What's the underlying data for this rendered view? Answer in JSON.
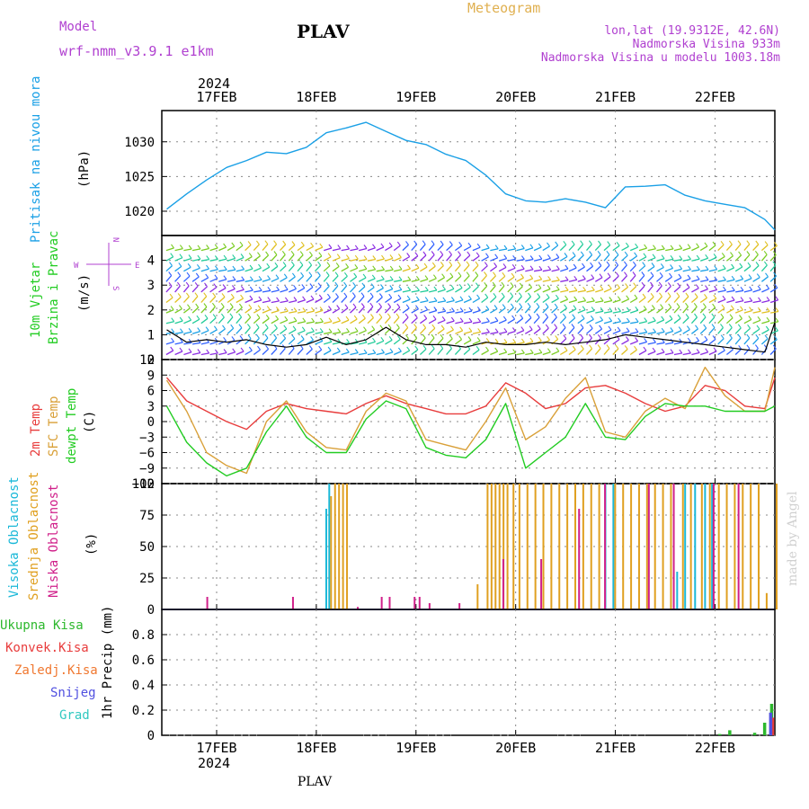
{
  "header": {
    "model_label": "Model",
    "model_value": "wrf-nmm_v3.9.1 e1km",
    "station": "PLAV",
    "product": "Meteogram",
    "coords": "lon,lat (19.9312E, 42.6N)",
    "elevation": "Nadmorska Visina 933m",
    "model_elevation": "Nadmorska Visina u modelu 1003.18m",
    "footer_station": "PLAV",
    "watermark": "made by Angel"
  },
  "colors": {
    "pressure": "#1aa0e6",
    "temp2m": "#e83c3c",
    "sfc": "#d9a038",
    "dewpt": "#22cc22",
    "high_cloud": "#1ab8d8",
    "mid_cloud": "#e0a020",
    "low_cloud": "#d0208a",
    "total_precip": "#2db82d",
    "conv_precip": "#e83c3c",
    "frz_precip": "#f07830",
    "snow": "#5050e0",
    "graupel": "#30c8c0",
    "purple_text": "#b040d0",
    "gold_text": "#e0b050"
  },
  "chart_data": [
    {
      "type": "line",
      "title": "Pritisak na nivou mora",
      "ylabel": "(hPa)",
      "ylim": [
        1016.5,
        1034.5
      ],
      "yticks": [
        "1020",
        "1025",
        "1030"
      ],
      "series": [
        {
          "name": "Pritisak na nivou mora",
          "x": [
            -0.5,
            -0.3,
            -0.1,
            0.1,
            0.3,
            0.5,
            0.7,
            0.9,
            1.1,
            1.3,
            1.5,
            1.7,
            1.9,
            2.1,
            2.3,
            2.5,
            2.7,
            2.9,
            3.1,
            3.3,
            3.5,
            3.7,
            3.9,
            4.1,
            4.3,
            4.5,
            4.7,
            4.9,
            5.1,
            5.3,
            5.5,
            5.6
          ],
          "values": [
            1020.3,
            1022.5,
            1024.5,
            1026.3,
            1027.3,
            1028.5,
            1028.3,
            1029.2,
            1031.3,
            1032.0,
            1032.8,
            1031.5,
            1030.2,
            1029.6,
            1028.2,
            1027.3,
            1025.2,
            1022.5,
            1021.5,
            1021.3,
            1021.8,
            1021.3,
            1020.5,
            1023.5,
            1023.6,
            1023.8,
            1022.3,
            1021.5,
            1021.0,
            1020.5,
            1018.8,
            1017.3
          ]
        }
      ]
    },
    {
      "type": "line",
      "title": "10m Vjetar Brzina i Pravac",
      "ylabel": "(m/s)",
      "ylim": [
        0,
        5
      ],
      "yticks": [
        "0",
        "1",
        "2",
        "3",
        "4"
      ],
      "compass": {
        "north": "N",
        "west": "W",
        "east": "E",
        "south": "S"
      },
      "series": [
        {
          "name": "speed",
          "x": [
            -0.5,
            -0.3,
            -0.1,
            0.1,
            0.3,
            0.5,
            0.7,
            0.9,
            1.1,
            1.3,
            1.5,
            1.7,
            1.9,
            2.1,
            2.3,
            2.5,
            2.7,
            2.9,
            3.1,
            3.3,
            3.5,
            3.7,
            3.9,
            4.1,
            4.3,
            4.5,
            4.7,
            4.9,
            5.1,
            5.3,
            5.5,
            5.6
          ],
          "values": [
            1.2,
            0.7,
            0.8,
            0.7,
            0.8,
            0.6,
            0.5,
            0.6,
            0.9,
            0.6,
            0.8,
            1.3,
            0.8,
            0.6,
            0.6,
            0.5,
            0.7,
            0.6,
            0.6,
            0.7,
            0.6,
            0.7,
            0.8,
            1.0,
            0.9,
            0.8,
            0.7,
            0.6,
            0.5,
            0.4,
            0.3,
            1.5
          ]
        }
      ]
    },
    {
      "type": "line",
      "title": "2m Temp / SFC Temp / dewpt Temp",
      "ylabel": "(C)",
      "ylim": [
        -12,
        12
      ],
      "yticks": [
        "−12",
        "−9",
        "−6",
        "−3",
        "0",
        "3",
        "6",
        "9",
        "12"
      ],
      "series": [
        {
          "name": "2m Temp",
          "x": [
            -0.5,
            -0.3,
            -0.1,
            0.1,
            0.3,
            0.5,
            0.7,
            0.9,
            1.1,
            1.3,
            1.5,
            1.7,
            1.9,
            2.1,
            2.3,
            2.5,
            2.7,
            2.9,
            3.1,
            3.3,
            3.5,
            3.7,
            3.9,
            4.1,
            4.3,
            4.5,
            4.7,
            4.9,
            5.1,
            5.3,
            5.5,
            5.6
          ],
          "values": [
            8.5,
            4.0,
            2.0,
            0.0,
            -1.5,
            2.0,
            3.5,
            2.5,
            2.0,
            1.5,
            3.5,
            5.0,
            3.5,
            2.5,
            1.5,
            1.5,
            3.0,
            7.5,
            5.5,
            2.5,
            3.5,
            6.5,
            7.0,
            5.5,
            3.5,
            2.0,
            3.0,
            7.0,
            6.0,
            3.0,
            2.5,
            8.5
          ]
        },
        {
          "name": "SFC Temp",
          "x": [
            -0.5,
            -0.3,
            -0.1,
            0.1,
            0.3,
            0.5,
            0.7,
            0.9,
            1.1,
            1.3,
            1.5,
            1.7,
            1.9,
            2.1,
            2.3,
            2.5,
            2.7,
            2.9,
            3.1,
            3.3,
            3.5,
            3.7,
            3.9,
            4.1,
            4.3,
            4.5,
            4.7,
            4.9,
            5.1,
            5.3,
            5.5,
            5.6
          ],
          "values": [
            8.0,
            2.0,
            -6.0,
            -8.5,
            -10.0,
            0.0,
            4.0,
            -2.0,
            -5.0,
            -5.5,
            2.0,
            5.5,
            4.0,
            -3.5,
            -4.5,
            -5.5,
            0.0,
            6.5,
            -3.5,
            -1.0,
            4.5,
            8.5,
            -2.0,
            -3.0,
            2.0,
            4.5,
            2.5,
            10.5,
            5.0,
            2.0,
            2.0,
            10.5
          ]
        },
        {
          "name": "dewpt Temp",
          "x": [
            -0.5,
            -0.3,
            -0.1,
            0.1,
            0.3,
            0.5,
            0.7,
            0.9,
            1.1,
            1.3,
            1.5,
            1.7,
            1.9,
            2.1,
            2.3,
            2.5,
            2.7,
            2.9,
            3.1,
            3.3,
            3.5,
            3.7,
            3.9,
            4.1,
            4.3,
            4.5,
            4.7,
            4.9,
            5.1,
            5.3,
            5.5,
            5.6
          ],
          "values": [
            3.0,
            -4.0,
            -8.0,
            -10.5,
            -9.0,
            -2.0,
            3.0,
            -3.0,
            -6.0,
            -6.0,
            0.5,
            4.0,
            2.5,
            -5.0,
            -6.5,
            -7.0,
            -3.5,
            3.5,
            -9.0,
            -6.0,
            -3.0,
            3.5,
            -3.0,
            -3.5,
            1.0,
            3.5,
            3.0,
            3.0,
            2.0,
            2.0,
            2.0,
            3.0
          ]
        }
      ]
    },
    {
      "type": "bar",
      "title": "Visoka Oblacnost / Srednja Oblacnost / Niska Oblacnost",
      "ylabel": "(%)",
      "ylim": [
        0,
        100
      ],
      "yticks": [
        "0",
        "25",
        "50",
        "75",
        "100"
      ],
      "series": [
        {
          "name": "Visoka Oblacnost",
          "x": [
            1.1,
            1.13,
            3.9,
            3.98,
            4.62,
            4.7,
            4.8,
            4.9,
            4.97
          ],
          "values": [
            80,
            100,
            100,
            100,
            30,
            100,
            100,
            100,
            100
          ]
        },
        {
          "name": "Srednja Oblacnost",
          "x": [
            1.13,
            1.17,
            1.21,
            1.25,
            1.29,
            2.6,
            2.7,
            2.74,
            2.78,
            2.82,
            2.86,
            2.9,
            2.96,
            3.02,
            3.1,
            3.18,
            3.26,
            3.34,
            3.42,
            3.5,
            3.58,
            3.66,
            3.74,
            3.82,
            3.98,
            4.06,
            4.14,
            4.22,
            4.3,
            4.38,
            4.46,
            4.54,
            4.66,
            4.74,
            4.85,
            4.93,
            5.02,
            5.1,
            5.18,
            5.26,
            5.34,
            5.42,
            5.5,
            5.6
          ],
          "values": [
            90,
            100,
            100,
            100,
            100,
            20,
            100,
            100,
            100,
            100,
            100,
            100,
            100,
            100,
            100,
            100,
            100,
            100,
            100,
            100,
            100,
            100,
            100,
            100,
            100,
            100,
            100,
            100,
            100,
            100,
            100,
            100,
            100,
            100,
            100,
            100,
            100,
            100,
            100,
            100,
            100,
            100,
            13,
            100
          ]
        },
        {
          "name": "Niska Oblacnost",
          "x": [
            -0.13,
            0.73,
            1.38,
            1.62,
            1.7,
            1.95,
            2.0,
            2.1,
            2.4,
            2.84,
            3.22,
            3.6,
            3.86,
            4.3,
            4.55,
            4.95,
            5.2
          ],
          "values": [
            10,
            10,
            2,
            10,
            10,
            10,
            10,
            5,
            5,
            40,
            40,
            80,
            100,
            100,
            100,
            100,
            100
          ]
        }
      ]
    },
    {
      "type": "bar",
      "title": "1hr Precip",
      "ylabel": "1hr Precip (mm)",
      "ylim": [
        0,
        1
      ],
      "yticks": [
        "0",
        "0.2",
        "0.4",
        "0.6",
        "0.8"
      ],
      "legend": [
        "Ukupna Kisa",
        "Konvek.Kisa",
        "Zaledj.Kisa",
        "Snijeg",
        "Grad"
      ],
      "series": [
        {
          "name": "Ukupna Kisa",
          "x": [
            5.05,
            5.15,
            5.4,
            5.5,
            5.57
          ],
          "values": [
            0.01,
            0.04,
            0.02,
            0.1,
            0.25
          ]
        },
        {
          "name": "Konvek.Kisa",
          "x": [
            5.58
          ],
          "values": [
            0.14
          ]
        },
        {
          "name": "Snijeg",
          "x": [
            5.56
          ],
          "values": [
            0.18
          ]
        }
      ]
    }
  ],
  "time_axis": {
    "year": "2024",
    "labels": [
      "17FEB",
      "18FEB",
      "19FEB",
      "20FEB",
      "21FEB",
      "22FEB"
    ],
    "xlim": [
      -0.55,
      5.6
    ]
  },
  "side_labels": {
    "pressure": [
      "Pritisak na nivou mora",
      "(hPa)"
    ],
    "wind": [
      "10m Vjetar",
      "Brzina i Pravac",
      "(m/s)"
    ],
    "temp": [
      "2m Temp",
      "SFC Temp",
      "dewpt Temp",
      "(C)"
    ],
    "cloud": [
      "Visoka Oblacnost",
      "Srednja Oblacnost",
      "Niska Oblacnost",
      "(%)"
    ],
    "precip_legend": [
      "Ukupna Kisa",
      "Konvek.Kisa",
      "Zaledj.Kisa",
      "Snijeg",
      "Grad"
    ],
    "precip_unit": "1hr Precip (mm)"
  }
}
